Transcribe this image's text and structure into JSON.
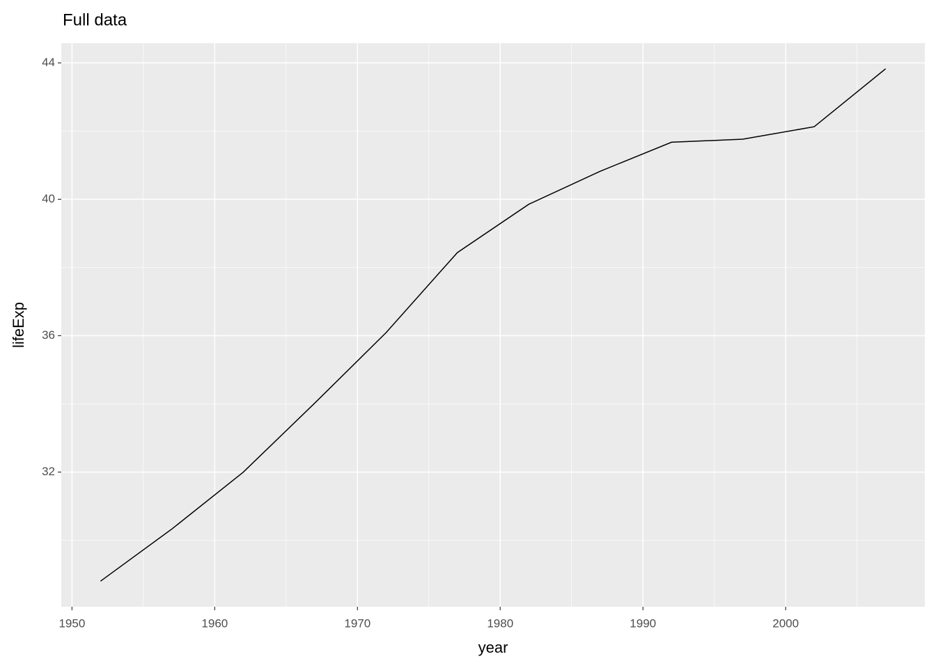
{
  "chart_data": {
    "type": "line",
    "title": "Full data",
    "x_label": "year",
    "y_label": "lifeExp",
    "x": [
      1952,
      1957,
      1962,
      1967,
      1972,
      1977,
      1982,
      1987,
      1992,
      1997,
      2002,
      2007
    ],
    "series": [
      {
        "color": "#000000",
        "values": [
          28.801,
          30.332,
          31.997,
          34.02,
          36.088,
          38.438,
          39.854,
          40.822,
          41.674,
          41.763,
          42.129,
          43.828
        ]
      }
    ],
    "xlim": [
      1949.25,
      2009.75
    ],
    "ylim": [
      28.05,
      44.58
    ],
    "xticks": [
      1950,
      1960,
      1970,
      1980,
      1990,
      2000
    ],
    "yticks": [
      32,
      36,
      40,
      44
    ],
    "grid": true
  }
}
